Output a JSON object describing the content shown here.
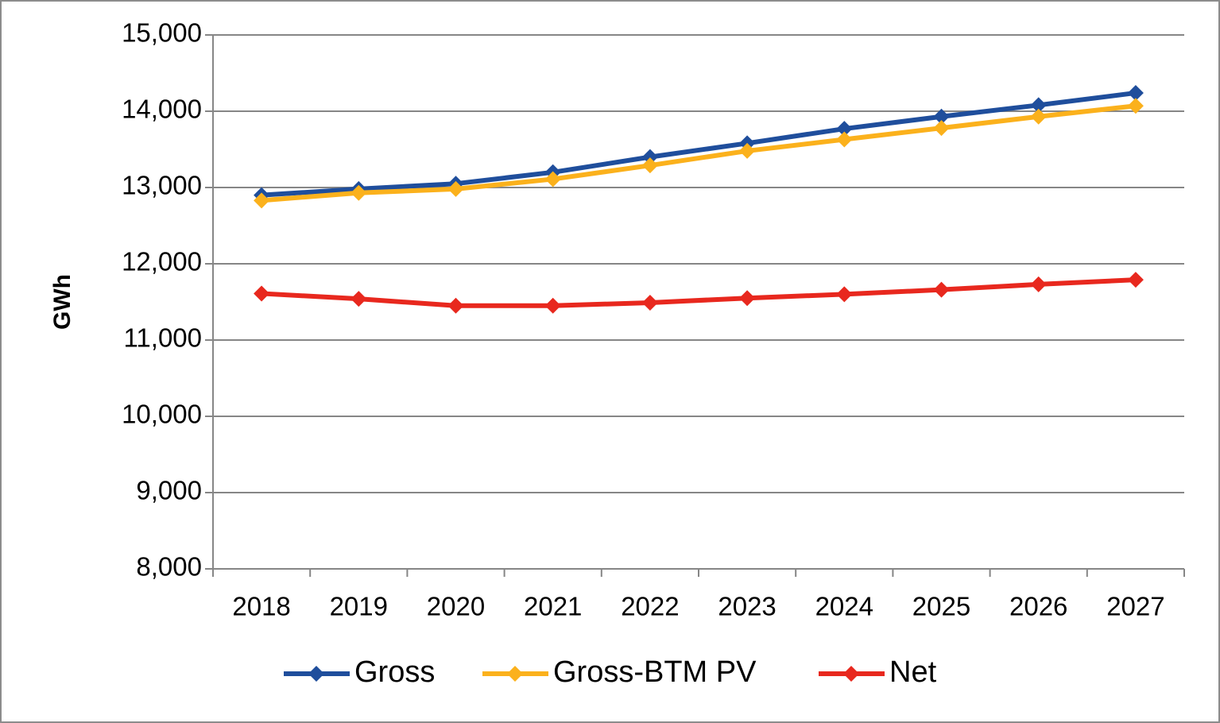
{
  "chart_data": {
    "type": "line",
    "y_label": "GWh",
    "categories": [
      "2018",
      "2019",
      "2020",
      "2021",
      "2022",
      "2023",
      "2024",
      "2025",
      "2026",
      "2027"
    ],
    "series": [
      {
        "name": "Gross",
        "color": "#1f4e9c",
        "values": [
          12900,
          12980,
          13050,
          13200,
          13400,
          13580,
          13770,
          13930,
          14080,
          14240
        ]
      },
      {
        "name": "Gross-BTM PV",
        "color": "#fbb11c",
        "values": [
          12830,
          12930,
          12980,
          13110,
          13290,
          13480,
          13630,
          13780,
          13930,
          14070
        ]
      },
      {
        "name": "Net",
        "color": "#e8281e",
        "values": [
          11610,
          11540,
          11450,
          11450,
          11490,
          11550,
          11600,
          11660,
          11730,
          11790
        ]
      }
    ],
    "ylim": [
      8000,
      15000
    ],
    "yticks": [
      {
        "value": 8000,
        "label": "8,000"
      },
      {
        "value": 9000,
        "label": "9,000"
      },
      {
        "value": 10000,
        "label": "10,000"
      },
      {
        "value": 11000,
        "label": "11,000"
      },
      {
        "value": 12000,
        "label": "12,000"
      },
      {
        "value": 13000,
        "label": "13,000"
      },
      {
        "value": 14000,
        "label": "14,000"
      },
      {
        "value": 15000,
        "label": "15,000"
      }
    ],
    "grid": true,
    "legend": "bottom"
  }
}
